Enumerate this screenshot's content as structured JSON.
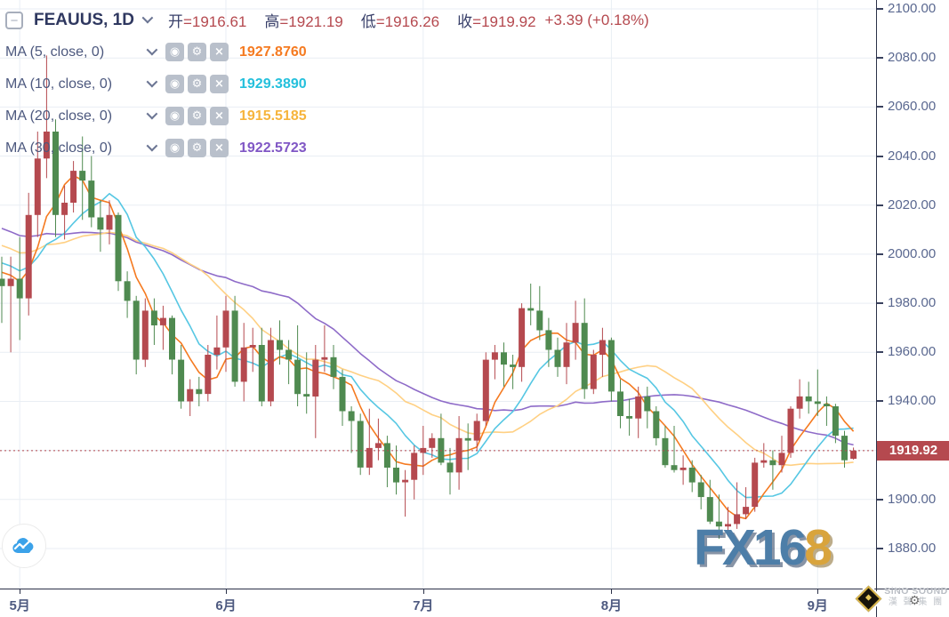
{
  "header": {
    "symbol": "FEAUUS, 1D",
    "ohlc": [
      {
        "label": "开",
        "value": "=1916.61"
      },
      {
        "label": "高",
        "value": "=1921.19"
      },
      {
        "label": "低",
        "value": "=1916.26"
      },
      {
        "label": "收",
        "value": "=1919.92"
      }
    ],
    "change": "+3.39 (+0.18%)"
  },
  "icons": {
    "collapse": "−",
    "visibility": "◉",
    "settings": "⚙",
    "close": "×"
  },
  "indicators": [
    {
      "label": "MA (5, close, 0)",
      "value": "1927.8760",
      "color": "#f57a20"
    },
    {
      "label": "MA (10, close, 0)",
      "value": "1929.3890",
      "color": "#24c0dc"
    },
    {
      "label": "MA (20, close, 0)",
      "value": "1915.5185",
      "color": "#f6b43c"
    },
    {
      "label": "MA (30, close, 0)",
      "value": "1922.5723",
      "color": "#8057c5"
    }
  ],
  "watermark": {
    "text_blue": "FX16",
    "text_gold": "8"
  },
  "brand": {
    "name_line": "SiNO SOUND",
    "cn_line": "漢 聲 集 團"
  },
  "chart_data": {
    "type": "candlestick",
    "title": "FEAUUS, 1D",
    "interval": "1D",
    "convention": "red=up, green=down",
    "up_color": "#b5494f",
    "down_color": "#4f8a50",
    "grid_color": "#e9eef4",
    "last_price": 1919.92,
    "current_bar": {
      "open": 1916.61,
      "high": 1921.19,
      "low": 1916.26,
      "close": 1919.92,
      "change": "+3.39 (+0.18%)"
    },
    "y_axis": {
      "ticks": [
        2100,
        2080,
        2060,
        2040,
        2020,
        2000,
        1980,
        1960,
        1940,
        1920,
        1900,
        1880
      ],
      "range": [
        1875,
        2103
      ]
    },
    "x_axis": {
      "labels": [
        "5月",
        "6月",
        "7月",
        "8月",
        "9月"
      ],
      "label_indices": [
        2,
        25,
        47,
        68,
        91
      ]
    },
    "ma": [
      {
        "period": 5,
        "color": "#f57a20",
        "value": 1927.876
      },
      {
        "period": 10,
        "color": "#56c7e3",
        "value": 1929.389
      },
      {
        "period": 20,
        "color": "#ffd083",
        "value": 1915.5185
      },
      {
        "period": 30,
        "color": "#8e6bc8",
        "value": 1922.5723
      }
    ],
    "candles": [
      [
        1990,
        1999,
        1972,
        1987
      ],
      [
        1987,
        1999,
        1960,
        1990
      ],
      [
        1990,
        2007,
        1965,
        1982
      ],
      [
        1982,
        2025,
        1975,
        2016
      ],
      [
        2016,
        2050,
        2007,
        2039
      ],
      [
        2039,
        2081,
        2031,
        2050
      ],
      [
        2050,
        2055,
        2007,
        2016
      ],
      [
        2016,
        2028,
        2006,
        2021
      ],
      [
        2021,
        2038,
        2017,
        2034
      ],
      [
        2034,
        2048,
        2014,
        2030
      ],
      [
        2030,
        2040,
        2011,
        2015
      ],
      [
        2015,
        2022,
        2001,
        2010
      ],
      [
        2010,
        2022,
        2004,
        2016
      ],
      [
        2016,
        2017,
        1985,
        1989
      ],
      [
        1989,
        1993,
        1974,
        1981
      ],
      [
        1981,
        1983,
        1951,
        1957
      ],
      [
        1957,
        1982,
        1954,
        1977
      ],
      [
        1977,
        1982,
        1963,
        1971
      ],
      [
        1971,
        1979,
        1961,
        1974
      ],
      [
        1974,
        1975,
        1951,
        1957
      ],
      [
        1957,
        1963,
        1937,
        1940
      ],
      [
        1940,
        1949,
        1934,
        1945
      ],
      [
        1945,
        1950,
        1938,
        1943
      ],
      [
        1943,
        1963,
        1940,
        1959
      ],
      [
        1959,
        1975,
        1953,
        1962
      ],
      [
        1962,
        1983,
        1952,
        1977
      ],
      [
        1977,
        1983,
        1946,
        1948
      ],
      [
        1948,
        1972,
        1940,
        1962
      ],
      [
        1962,
        1970,
        1952,
        1963
      ],
      [
        1963,
        1970,
        1938,
        1940
      ],
      [
        1940,
        1970,
        1938,
        1965
      ],
      [
        1965,
        1973,
        1955,
        1961
      ],
      [
        1961,
        1965,
        1947,
        1957
      ],
      [
        1957,
        1971,
        1938,
        1943
      ],
      [
        1943,
        1960,
        1935,
        1942
      ],
      [
        1942,
        1963,
        1925,
        1957
      ],
      [
        1957,
        1971,
        1952,
        1958
      ],
      [
        1958,
        1963,
        1945,
        1950
      ],
      [
        1950,
        1953,
        1930,
        1936
      ],
      [
        1936,
        1938,
        1919,
        1932
      ],
      [
        1932,
        1935,
        1910,
        1913
      ],
      [
        1913,
        1937,
        1910,
        1921
      ],
      [
        1921,
        1933,
        1916,
        1923
      ],
      [
        1923,
        1926,
        1905,
        1913
      ],
      [
        1913,
        1922,
        1902,
        1907
      ],
      [
        1907,
        1912,
        1893,
        1908
      ],
      [
        1908,
        1922,
        1900,
        1919
      ],
      [
        1919,
        1930,
        1910,
        1921
      ],
      [
        1921,
        1927,
        1917,
        1925
      ],
      [
        1925,
        1935,
        1914,
        1915
      ],
      [
        1915,
        1921,
        1902,
        1911
      ],
      [
        1911,
        1934,
        1904,
        1925
      ],
      [
        1925,
        1931,
        1912,
        1924
      ],
      [
        1924,
        1935,
        1920,
        1932
      ],
      [
        1932,
        1960,
        1930,
        1957
      ],
      [
        1957,
        1963,
        1949,
        1960
      ],
      [
        1960,
        1964,
        1946,
        1955
      ],
      [
        1955,
        1959,
        1945,
        1954
      ],
      [
        1954,
        1980,
        1948,
        1978
      ],
      [
        1978,
        1988,
        1971,
        1977
      ],
      [
        1977,
        1987,
        1965,
        1969
      ],
      [
        1969,
        1974,
        1954,
        1961
      ],
      [
        1961,
        1966,
        1950,
        1954
      ],
      [
        1954,
        1972,
        1947,
        1964
      ],
      [
        1964,
        1981,
        1957,
        1972
      ],
      [
        1972,
        1982,
        1941,
        1945
      ],
      [
        1945,
        1961,
        1943,
        1959
      ],
      [
        1959,
        1970,
        1950,
        1965
      ],
      [
        1965,
        1966,
        1940,
        1944
      ],
      [
        1944,
        1949,
        1929,
        1934
      ],
      [
        1934,
        1941,
        1926,
        1933
      ],
      [
        1933,
        1946,
        1925,
        1942
      ],
      [
        1942,
        1946,
        1929,
        1936
      ],
      [
        1936,
        1938,
        1922,
        1925
      ],
      [
        1925,
        1930,
        1913,
        1914
      ],
      [
        1914,
        1930,
        1911,
        1912
      ],
      [
        1912,
        1918,
        1906,
        1913
      ],
      [
        1913,
        1916,
        1903,
        1907
      ],
      [
        1907,
        1910,
        1896,
        1901
      ],
      [
        1901,
        1908,
        1890,
        1891
      ],
      [
        1891,
        1902,
        1884,
        1889
      ],
      [
        1889,
        1897,
        1885,
        1890
      ],
      [
        1890,
        1907,
        1888,
        1894
      ],
      [
        1894,
        1905,
        1892,
        1897
      ],
      [
        1897,
        1917,
        1895,
        1915
      ],
      [
        1915,
        1923,
        1913,
        1916
      ],
      [
        1916,
        1920,
        1904,
        1914
      ],
      [
        1914,
        1926,
        1911,
        1919
      ],
      [
        1919,
        1938,
        1917,
        1937
      ],
      [
        1937,
        1949,
        1933,
        1942
      ],
      [
        1942,
        1948,
        1935,
        1940
      ],
      [
        1940,
        1953,
        1934,
        1939
      ],
      [
        1939,
        1942,
        1930,
        1938
      ],
      [
        1938,
        1939,
        1923,
        1926
      ],
      [
        1926,
        1928,
        1913,
        1916
      ],
      [
        1916.61,
        1921.19,
        1916.26,
        1919.92
      ]
    ]
  }
}
